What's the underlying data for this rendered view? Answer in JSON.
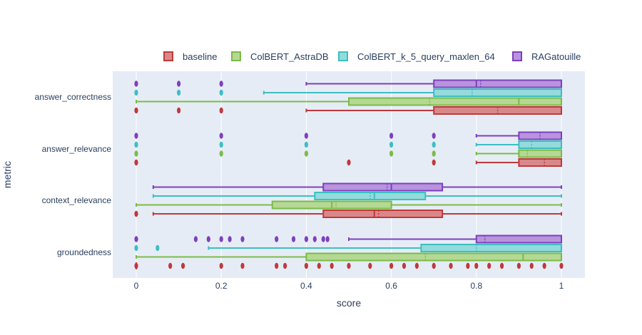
{
  "chart_data": {
    "type": "box",
    "orientation": "horizontal",
    "xlabel": "score",
    "ylabel": "metric",
    "xlim": [
      -0.05,
      1.05
    ],
    "xticks": [
      "0",
      "0.2",
      "0.4",
      "0.6",
      "0.8",
      "1"
    ],
    "xtick_values": [
      0,
      0.2,
      0.4,
      0.6,
      0.8,
      1
    ],
    "grid": true,
    "legend_position": "top",
    "categories": [
      "answer_correctness",
      "answer_relevance",
      "context_relevance",
      "groundedness"
    ],
    "series": [
      {
        "name": "baseline",
        "color": "#c0393b",
        "fill": "#d9888a",
        "boxes": [
          {
            "category": "answer_correctness",
            "min": 0.4,
            "q1": 0.7,
            "median": 1.0,
            "q3": 1.0,
            "max": 1.0,
            "mean": 0.85,
            "outliers": [
              0,
              0.1,
              0.2
            ]
          },
          {
            "category": "answer_relevance",
            "min": 0.8,
            "q1": 0.9,
            "median": 1.0,
            "q3": 1.0,
            "max": 1.0,
            "mean": 0.96,
            "outliers": [
              0,
              0.5,
              0.7
            ]
          },
          {
            "category": "context_relevance",
            "min": 0.04,
            "q1": 0.44,
            "median": 0.56,
            "q3": 0.72,
            "max": 1.0,
            "mean": 0.57,
            "outliers": [
              0
            ]
          },
          {
            "category": "groundedness",
            "min": 0.0,
            "q1": 0.0,
            "median": 0.0,
            "q3": 0.0,
            "max": 0.0,
            "mean": 0.0,
            "outliers": [
              0,
              0.08,
              0.11,
              0.2,
              0.25,
              0.33,
              0.35,
              0.4,
              0.43,
              0.46,
              0.5,
              0.55,
              0.6,
              0.63,
              0.66,
              0.7,
              0.74,
              0.78,
              0.8,
              0.83,
              0.86,
              0.9,
              0.93,
              0.96,
              1.0
            ]
          }
        ]
      },
      {
        "name": "ColBERT_AstraDB",
        "color": "#7cbb46",
        "fill": "#b5d894",
        "boxes": [
          {
            "category": "answer_correctness",
            "min": 0.0,
            "q1": 0.5,
            "median": 0.9,
            "q3": 1.0,
            "max": 1.0,
            "mean": 0.69,
            "outliers": []
          },
          {
            "category": "answer_relevance",
            "min": 0.8,
            "q1": 0.9,
            "median": 0.9,
            "q3": 1.0,
            "max": 1.0,
            "mean": 0.92,
            "outliers": [
              0,
              0.2,
              0.4,
              0.6,
              0.7
            ]
          },
          {
            "category": "context_relevance",
            "min": 0.0,
            "q1": 0.32,
            "median": 0.46,
            "q3": 0.6,
            "max": 1.0,
            "mean": 0.47,
            "outliers": []
          },
          {
            "category": "groundedness",
            "min": 0.0,
            "q1": 0.4,
            "median": 0.91,
            "q3": 1.0,
            "max": 1.0,
            "mean": 0.68,
            "outliers": []
          }
        ]
      },
      {
        "name": "ColBERT_k_5_query_maxlen_64",
        "color": "#3dbfc1",
        "fill": "#93dbdc",
        "boxes": [
          {
            "category": "answer_correctness",
            "min": 0.3,
            "q1": 0.7,
            "median": 1.0,
            "q3": 1.0,
            "max": 1.0,
            "mean": 0.79,
            "outliers": [
              0,
              0.1,
              0.2
            ]
          },
          {
            "category": "answer_relevance",
            "min": 0.8,
            "q1": 0.9,
            "median": 1.0,
            "q3": 1.0,
            "max": 1.0,
            "mean": 0.93,
            "outliers": [
              0,
              0.2,
              0.4,
              0.6,
              0.7
            ]
          },
          {
            "category": "context_relevance",
            "min": 0.04,
            "q1": 0.42,
            "median": 0.56,
            "q3": 0.68,
            "max": 1.0,
            "mean": 0.55,
            "outliers": []
          },
          {
            "category": "groundedness",
            "min": 0.17,
            "q1": 0.67,
            "median": 1.0,
            "q3": 1.0,
            "max": 1.0,
            "mean": 0.8,
            "outliers": [
              0,
              0.05
            ]
          }
        ]
      },
      {
        "name": "RAGatouille",
        "color": "#7f3fbf",
        "fill": "#b894dc",
        "boxes": [
          {
            "category": "answer_correctness",
            "min": 0.4,
            "q1": 0.7,
            "median": 0.8,
            "q3": 1.0,
            "max": 1.0,
            "mean": 0.81,
            "outliers": [
              0,
              0.1,
              0.2
            ]
          },
          {
            "category": "answer_relevance",
            "min": 0.8,
            "q1": 0.9,
            "median": 1.0,
            "q3": 1.0,
            "max": 1.0,
            "mean": 0.95,
            "outliers": [
              0,
              0.2,
              0.4,
              0.6,
              0.7
            ]
          },
          {
            "category": "context_relevance",
            "min": 0.04,
            "q1": 0.44,
            "median": 0.6,
            "q3": 0.72,
            "max": 1.0,
            "mean": 0.59,
            "outliers": []
          },
          {
            "category": "groundedness",
            "min": 0.5,
            "q1": 0.8,
            "median": 1.0,
            "q3": 1.0,
            "max": 1.0,
            "mean": 0.82,
            "outliers": [
              0,
              0.14,
              0.17,
              0.2,
              0.22,
              0.25,
              0.33,
              0.37,
              0.4,
              0.42,
              0.44,
              0.45
            ]
          }
        ]
      }
    ]
  }
}
